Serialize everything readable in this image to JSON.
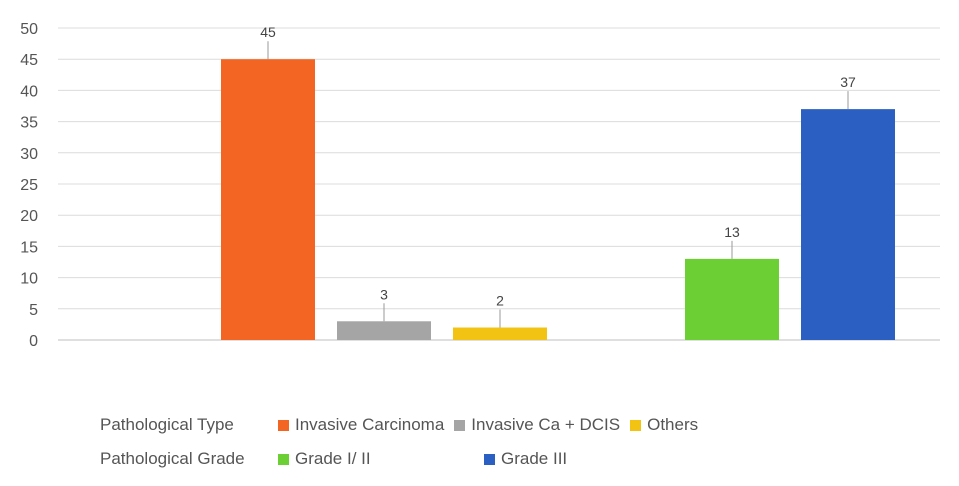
{
  "chart_data": {
    "type": "bar",
    "ylim": [
      0,
      50
    ],
    "yticks": [
      0,
      5,
      10,
      15,
      20,
      25,
      30,
      35,
      40,
      45,
      50
    ],
    "grid": true,
    "legend_position": "bottom",
    "bars": [
      {
        "group": "Pathological Type",
        "name": "Invasive Carcinoma",
        "value": 45,
        "color": "#F26522"
      },
      {
        "group": "Pathological Type",
        "name": "Invasive Ca + DCIS",
        "value": 3,
        "color": "#A5A5A5"
      },
      {
        "group": "Pathological Type",
        "name": "Others",
        "value": 2,
        "color": "#F2C313"
      },
      {
        "group": "Pathological Grade",
        "name": "Grade I/ II",
        "value": 13,
        "color": "#6CCF34"
      },
      {
        "group": "Pathological Grade",
        "name": "Grade III",
        "value": 37,
        "color": "#2B5FC1"
      }
    ],
    "legend": {
      "rows": [
        {
          "group_label": "Pathological Type",
          "items": [
            {
              "label": "Invasive Carcinoma",
              "color": "#F26522"
            },
            {
              "label": "Invasive Ca + DCIS",
              "color": "#A5A5A5"
            },
            {
              "label": "Others",
              "color": "#F2C313"
            }
          ]
        },
        {
          "group_label": "Pathological Grade",
          "items": [
            {
              "label": "Grade I/ II",
              "color": "#6CCF34"
            },
            {
              "label": "Grade III",
              "color": "#2B5FC1"
            }
          ]
        }
      ]
    }
  }
}
